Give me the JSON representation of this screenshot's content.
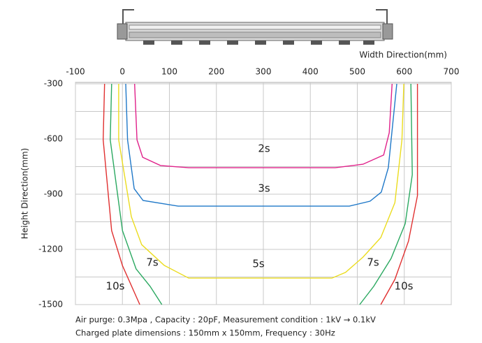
{
  "chart_data": {
    "type": "line",
    "x_label": "Width Direction(mm)",
    "y_label": "Height Direction(mm)",
    "xlim": [
      -100,
      700
    ],
    "xticks": [
      -100,
      0,
      100,
      200,
      300,
      400,
      500,
      600,
      700
    ],
    "ylim": [
      -300,
      -1500
    ],
    "yticks": [
      -300,
      -600,
      -900,
      -1200,
      -1500
    ],
    "minor_yticks": [
      -450,
      -750,
      -1050,
      -1350
    ],
    "grid": true,
    "series": [
      {
        "name": "2s",
        "color": "#e0218a",
        "x": [
          26,
          31,
          43,
          81,
          141,
          453,
          512,
          556,
          568,
          574
        ],
        "values": [
          -300,
          -604,
          -699,
          -744,
          -756,
          -756,
          -737,
          -687,
          -566,
          -300
        ]
      },
      {
        "name": "3s",
        "color": "#1f78c8",
        "x": [
          7,
          11,
          25,
          44,
          119,
          483,
          527,
          551,
          566,
          584
        ],
        "values": [
          -300,
          -604,
          -870,
          -934,
          -965,
          -965,
          -938,
          -889,
          -756,
          -300
        ]
      },
      {
        "name": "5s",
        "color": "#ebdc1e",
        "x": [
          -8,
          -8,
          19,
          41,
          89,
          141,
          446,
          475,
          512,
          550,
          580,
          595,
          599
        ],
        "values": [
          -300,
          -604,
          -1022,
          -1174,
          -1287,
          -1356,
          -1356,
          -1325,
          -1242,
          -1136,
          -946,
          -604,
          -300
        ]
      },
      {
        "name": "7s",
        "color": "#2aa860",
        "x": [
          -23,
          -26,
          0,
          29,
          59,
          84,
          null,
          505,
          535,
          572,
          602,
          617,
          614
        ],
        "values": [
          -300,
          -604,
          -1098,
          -1306,
          -1401,
          -1500,
          null,
          -1500,
          -1401,
          -1249,
          -1060,
          -794,
          -300
        ]
      },
      {
        "name": "10s",
        "color": "#e03030",
        "x": [
          -38,
          -41,
          -23,
          0,
          37,
          null,
          550,
          580,
          609,
          628,
          628
        ],
        "values": [
          -300,
          -604,
          -1098,
          -1288,
          -1500,
          null,
          -1500,
          -1363,
          -1155,
          -908,
          -300
        ]
      }
    ],
    "notes": [
      "Air purge: 0.3Mpa , Capacity : 20pF, Measurement condition : 1kV → 0.1kV",
      "Charged plate dimensions : 150mm x 150mm, Frequency : 30Hz"
    ]
  }
}
